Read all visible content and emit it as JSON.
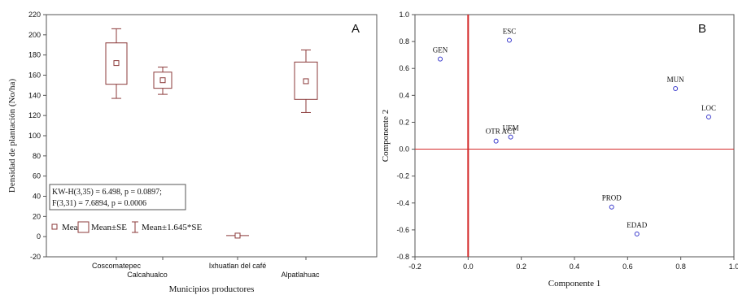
{
  "chart_data": [
    {
      "panel_label": "A",
      "type": "box",
      "xlabel": "Municipios productores",
      "ylabel": "Densidad de plantación (No/ha)",
      "ylim": [
        -20,
        220
      ],
      "yticks": [
        -20,
        0,
        20,
        40,
        60,
        80,
        100,
        120,
        140,
        160,
        180,
        200,
        220
      ],
      "categories": [
        "Coscomatepec",
        "Calcahualco",
        "Ixhuatlan del café",
        "Alpatlahuac"
      ],
      "series": [
        {
          "category": "Coscomatepec",
          "mean": 172,
          "se_low": 151,
          "se_high": 192,
          "whisker_low": 137,
          "whisker_high": 206
        },
        {
          "category": "Calcahualco",
          "mean": 155,
          "se_low": 147,
          "se_high": 163,
          "whisker_low": 141,
          "whisker_high": 168
        },
        {
          "category": "Ixhuatlan del café",
          "mean": 1,
          "se_low": 1,
          "se_high": 1,
          "whisker_low": 1,
          "whisker_high": 1
        },
        {
          "category": "Alpatlahuac",
          "mean": 154,
          "se_low": 136,
          "se_high": 173,
          "whisker_low": 123,
          "whisker_high": 185
        }
      ],
      "stats_text": [
        "KW-H(3,35) = 6.498, p = 0.0897;",
        "F(3,31) = 7.6894, p = 0.0006"
      ],
      "legend": [
        "Mean",
        "Mean±SE",
        "Mean±1.645*SE"
      ],
      "color": "#8b3a3a"
    },
    {
      "panel_label": "B",
      "type": "scatter",
      "xlabel": "Componente 1",
      "ylabel": "Componente 2",
      "xlim": [
        -0.2,
        1.0
      ],
      "ylim": [
        -0.8,
        1.0
      ],
      "xticks": [
        "-0.2",
        "0.0",
        "0.2",
        "0.4",
        "0.6",
        "0.8",
        "1.0"
      ],
      "yticks": [
        "1.0",
        "0.8",
        "0.6",
        "0.4",
        "0.2",
        "0.0",
        "-0.2",
        "-0.4",
        "-0.6",
        "-0.8"
      ],
      "points": [
        {
          "label": "ESC",
          "x": 0.155,
          "y": 0.81
        },
        {
          "label": "GEN",
          "x": -0.105,
          "y": 0.67
        },
        {
          "label": "MUN",
          "x": 0.78,
          "y": 0.45
        },
        {
          "label": "LOC",
          "x": 0.905,
          "y": 0.24
        },
        {
          "label": "UEM",
          "x": 0.16,
          "y": 0.09
        },
        {
          "label": "OTR ACT",
          "x": 0.105,
          "y": 0.06
        },
        {
          "label": "PROD",
          "x": 0.54,
          "y": -0.43
        },
        {
          "label": "EDAD",
          "x": 0.635,
          "y": -0.63
        }
      ],
      "reference_lines": {
        "x": 0.0,
        "y": 0.0
      },
      "point_color": "#3a3acc",
      "ref_color": "#d42a2a"
    }
  ]
}
